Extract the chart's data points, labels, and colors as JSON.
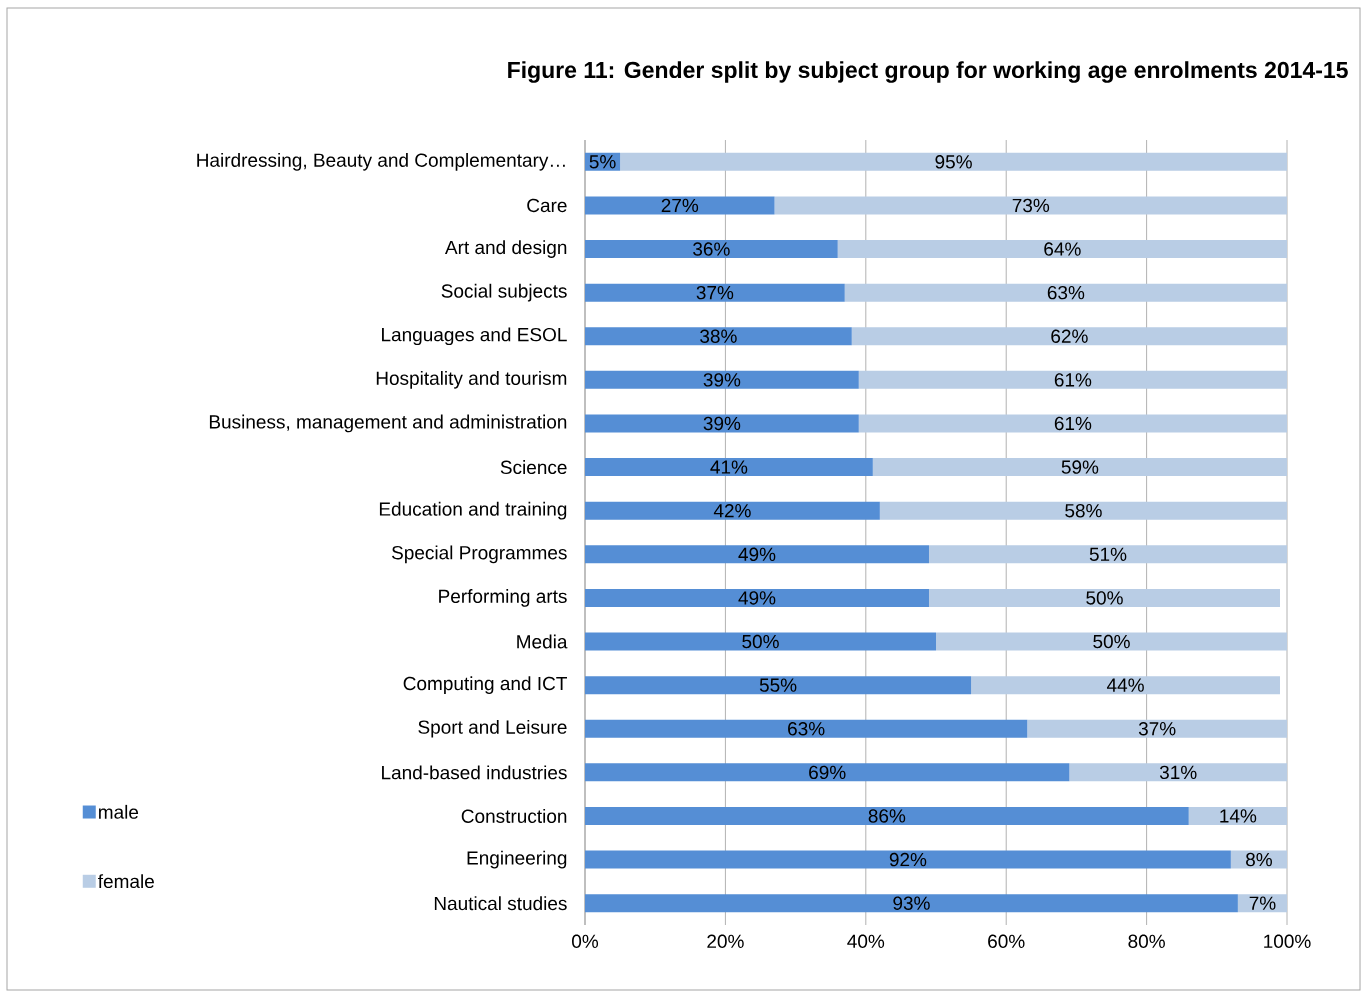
{
  "chart_data": {
    "type": "bar",
    "orientation": "horizontal",
    "stacked": true,
    "title": "Figure 11: Gender split by subject group for working age enrolments 2014-15",
    "categories": [
      "Hairdressing, Beauty and Complementary…",
      "Care",
      "Art and design",
      "Social subjects",
      "Languages and ESOL",
      "Hospitality and tourism",
      "Business, management and administration",
      "Science",
      "Education and training",
      "Special Programmes",
      "Performing arts",
      "Media",
      "Computing and ICT",
      "Sport and Leisure",
      "Land-based industries",
      "Construction",
      "Engineering",
      "Nautical studies"
    ],
    "series": [
      {
        "name": "male",
        "color": "#558ed5",
        "values": [
          5,
          27,
          36,
          37,
          38,
          39,
          39,
          41,
          42,
          49,
          49,
          50,
          55,
          63,
          69,
          86,
          92,
          93
        ],
        "value_labels": [
          "5%",
          "27%",
          "36%",
          "37%",
          "38%",
          "39%",
          "39%",
          "41%",
          "42%",
          "49%",
          "49%",
          "50%",
          "55%",
          "63%",
          "69%",
          "86%",
          "92%",
          "93%"
        ]
      },
      {
        "name": "female",
        "color": "#b9cde5",
        "values": [
          95,
          73,
          64,
          63,
          62,
          61,
          61,
          59,
          58,
          51,
          50,
          50,
          44,
          37,
          31,
          14,
          8,
          7
        ],
        "value_labels": [
          "95%",
          "73%",
          "64%",
          "63%",
          "62%",
          "61%",
          "61%",
          "59%",
          "58%",
          "51%",
          "50%",
          "50%",
          "44%",
          "37%",
          "31%",
          "14%",
          "8%",
          "7%"
        ]
      }
    ],
    "xlim": [
      0,
      100
    ],
    "xticks": [
      {
        "value": 0,
        "label": "0%"
      },
      {
        "value": 20,
        "label": "20%"
      },
      {
        "value": 40,
        "label": "40%"
      },
      {
        "value": 60,
        "label": "60%"
      },
      {
        "value": 80,
        "label": "80%"
      },
      {
        "value": 100,
        "label": "100%"
      }
    ],
    "grid": "x",
    "legend": "left"
  }
}
